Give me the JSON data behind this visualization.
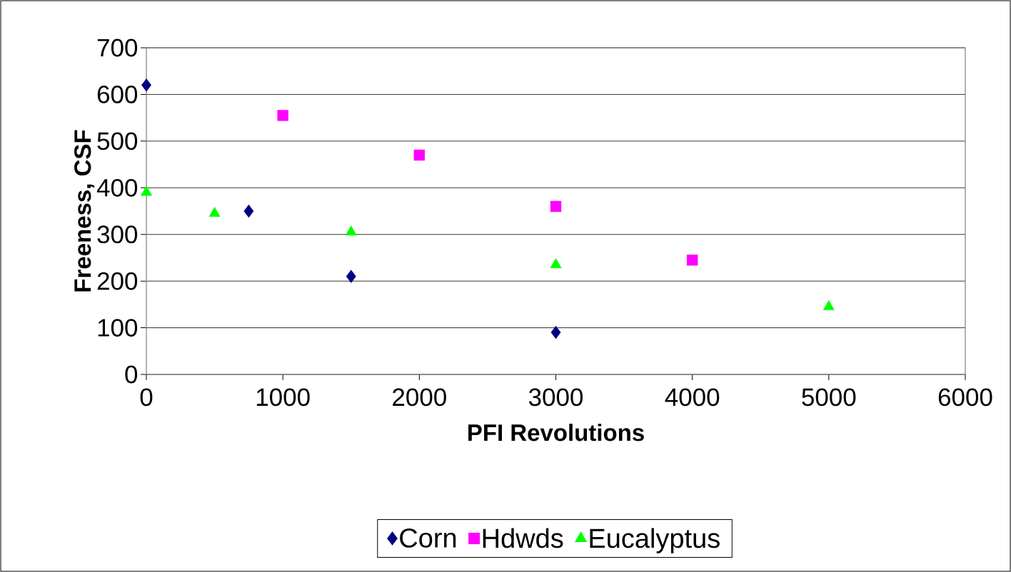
{
  "chart_data": {
    "type": "scatter",
    "xlabel": "PFI Revolutions",
    "ylabel": "Freeness, CSF",
    "xlim": [
      0,
      6000
    ],
    "xticks": [
      0,
      1000,
      2000,
      3000,
      4000,
      5000,
      6000
    ],
    "ylim": [
      0,
      700
    ],
    "yticks": [
      0,
      100,
      200,
      300,
      400,
      500,
      600,
      700
    ],
    "grid": "y",
    "legend": "bottom",
    "series": [
      {
        "name": "Corn",
        "color": "#000080",
        "marker": "diamond",
        "x": [
          0,
          750,
          1500,
          3000
        ],
        "values": [
          620,
          350,
          210,
          90
        ]
      },
      {
        "name": "Hdwds",
        "color": "#ff00ff",
        "marker": "square",
        "x": [
          1000,
          2000,
          3000,
          4000
        ],
        "values": [
          555,
          470,
          360,
          245
        ]
      },
      {
        "name": "Eucalyptus",
        "color": "#00ff00",
        "marker": "triangle",
        "x": [
          0,
          500,
          1500,
          3000,
          5000
        ],
        "values": [
          390,
          345,
          305,
          235,
          145
        ]
      }
    ]
  }
}
